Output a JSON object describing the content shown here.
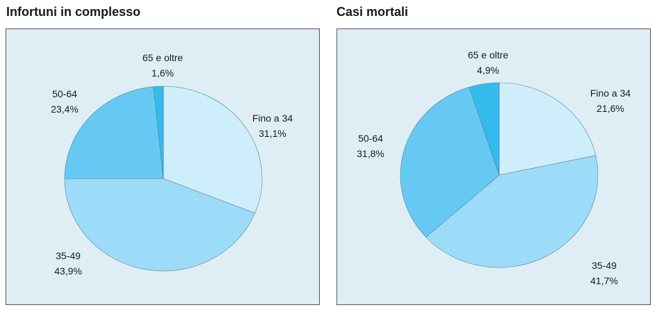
{
  "chart_data": [
    {
      "type": "pie",
      "title": "Infortuni in complesso",
      "slices": [
        {
          "label": "Fino a 34",
          "value": 31.1,
          "value_label": "31,1%",
          "color": "#cdeefa"
        },
        {
          "label": "35-49",
          "value": 43.9,
          "value_label": "43,9%",
          "color": "#9ddcf8"
        },
        {
          "label": "50-64",
          "value": 23.4,
          "value_label": "23,4%",
          "color": "#66c9f3"
        },
        {
          "label": "65 e oltre",
          "value": 1.6,
          "value_label": "1,6%",
          "color": "#33bbee"
        }
      ]
    },
    {
      "type": "pie",
      "title": "Casi mortali",
      "slices": [
        {
          "label": "Fino a 34",
          "value": 21.6,
          "value_label": "21,6%",
          "color": "#cdeefa"
        },
        {
          "label": "35-49",
          "value": 41.7,
          "value_label": "41,7%",
          "color": "#9ddcf8"
        },
        {
          "label": "50-64",
          "value": 31.8,
          "value_label": "31,8%",
          "color": "#66c9f3"
        },
        {
          "label": "65 e oltre",
          "value": 4.9,
          "value_label": "4,9%",
          "color": "#33bbee"
        }
      ]
    }
  ]
}
